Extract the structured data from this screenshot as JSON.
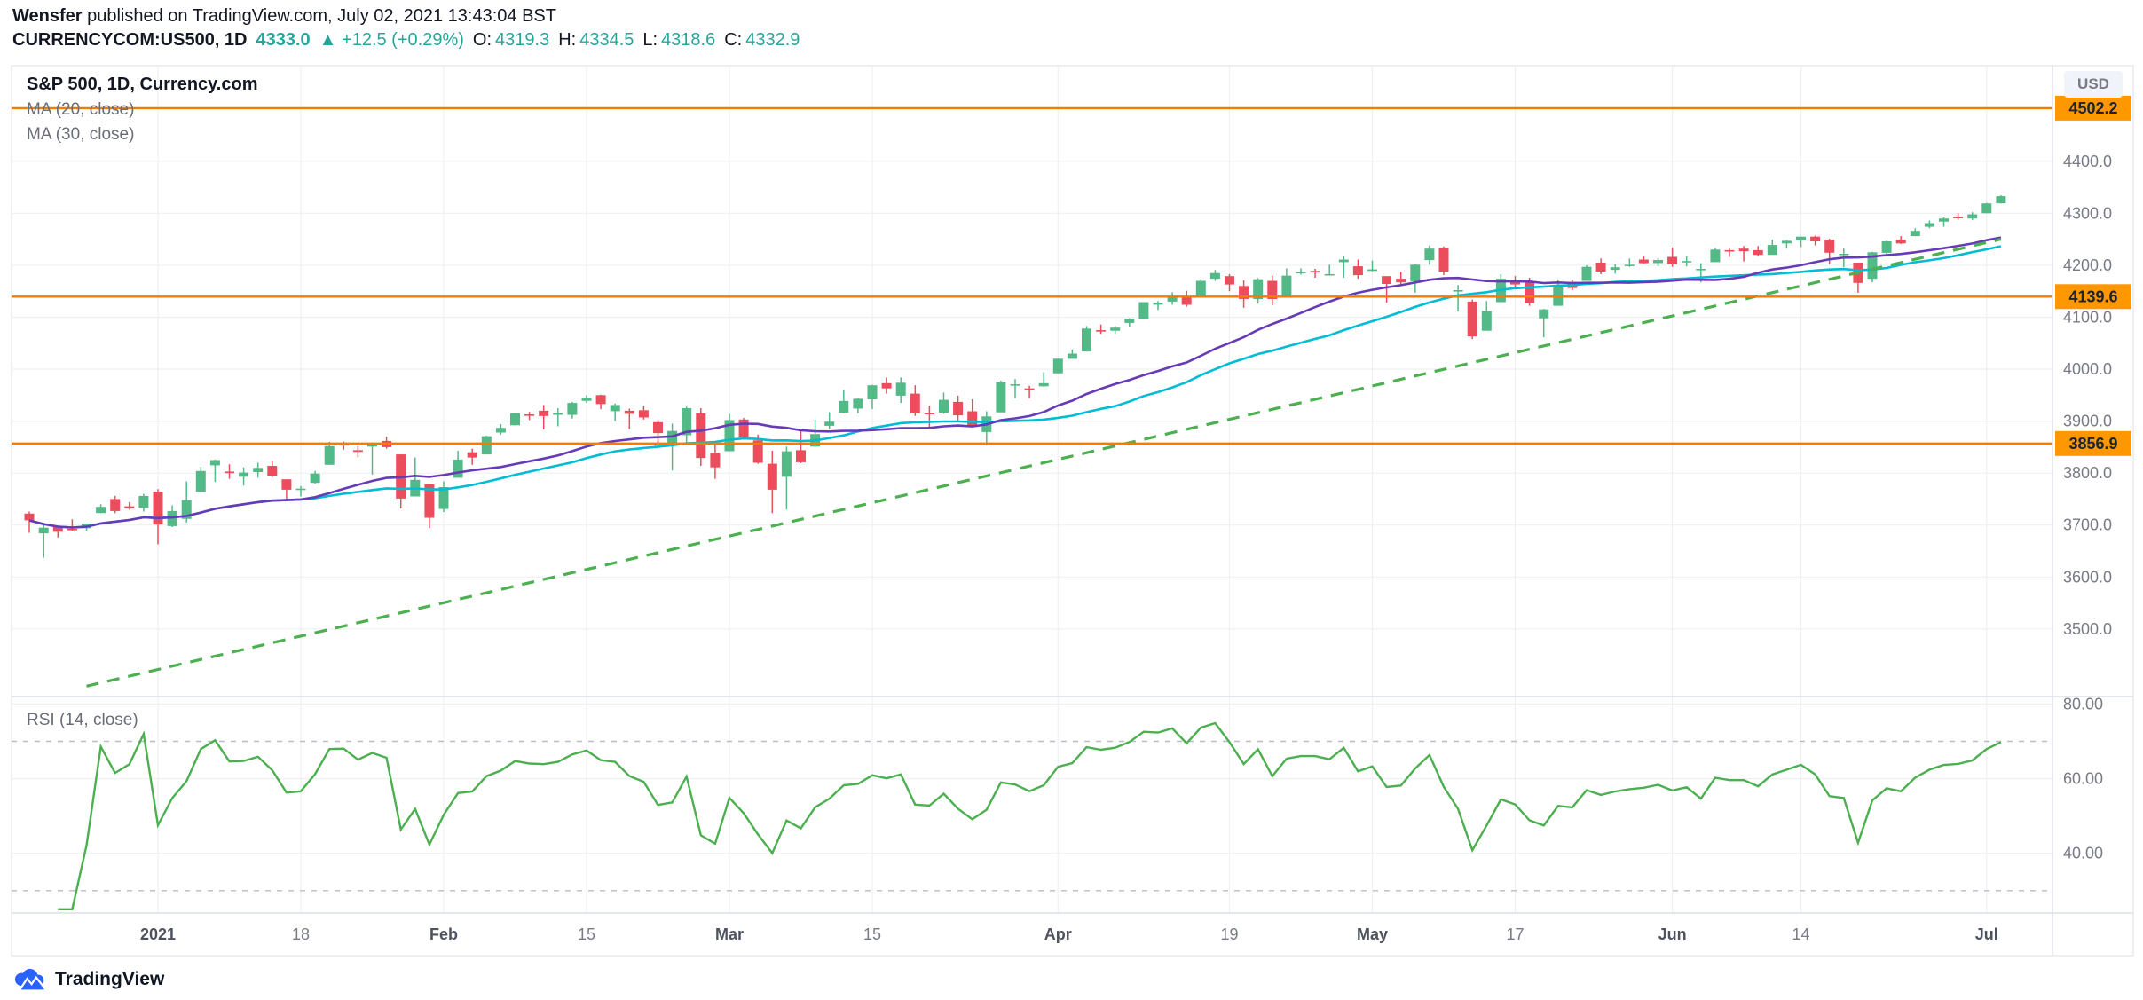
{
  "header": {
    "author": "Wensfer",
    "published": " published on TradingView.com, July 02, 2021 13:43:04 BST",
    "symbol": "CURRENCYCOM:US500, 1D",
    "price": "4333.0",
    "change": "▲ +12.5 (+0.29%)",
    "o_label": "O:",
    "o_value": "4319.3",
    "h_label": "H:",
    "h_value": "4334.5",
    "l_label": "L:",
    "l_value": "4318.6",
    "c_label": "C:",
    "c_value": "4332.9"
  },
  "legend": {
    "title": "S&P 500, 1D, Currency.com",
    "ma20": "MA (20, close)",
    "ma30": "MA (30, close)",
    "rsi": "RSI (14, close)"
  },
  "axis": {
    "currency": "USD"
  },
  "footer": {
    "brand": "TradingView"
  },
  "chart_data": {
    "type": "candlestick",
    "title": "S&P 500, 1D, Currency.com",
    "symbol": "CURRENCYCOM:US500",
    "interval": "1D",
    "colors": {
      "up": "#53b987",
      "down": "#eb4d5c"
    },
    "overlays": {
      "ma20_color": "#673ab7",
      "ma30_color": "#00bcd4"
    },
    "rsi_color": "#4caf50",
    "price_axis": {
      "range": [
        3370,
        4584
      ],
      "ticks": [
        4400,
        4300,
        4200,
        4100,
        4000,
        3900,
        3800,
        3700,
        3600,
        3500
      ]
    },
    "rsi_axis": {
      "range": [
        24,
        82
      ],
      "ticks": [
        80,
        60,
        40
      ],
      "bands": [
        70,
        30
      ]
    },
    "horizontal_lines": [
      {
        "price": 4502.2,
        "label": "4502.2",
        "color": "#f57c00"
      },
      {
        "price": 4139.6,
        "label": "4139.6",
        "color": "#f57c00"
      },
      {
        "price": 3856.9,
        "label": "3856.9",
        "color": "#f57c00"
      }
    ],
    "trendline": {
      "from_index": 4,
      "from_price": 3390,
      "to_index": 138,
      "to_price": 4250,
      "color": "#4caf50",
      "style": "dashed"
    },
    "time_ticks": [
      {
        "label": "2021",
        "i": 9,
        "major": true
      },
      {
        "label": "18",
        "i": 19,
        "major": false
      },
      {
        "label": "Feb",
        "i": 29,
        "major": true
      },
      {
        "label": "15",
        "i": 39,
        "major": false
      },
      {
        "label": "Mar",
        "i": 49,
        "major": true
      },
      {
        "label": "15",
        "i": 59,
        "major": false
      },
      {
        "label": "Apr",
        "i": 72,
        "major": true
      },
      {
        "label": "19",
        "i": 84,
        "major": false
      },
      {
        "label": "May",
        "i": 94,
        "major": true
      },
      {
        "label": "17",
        "i": 104,
        "major": false
      },
      {
        "label": "Jun",
        "i": 115,
        "major": true
      },
      {
        "label": "14",
        "i": 124,
        "major": false
      },
      {
        "label": "Jul",
        "i": 137,
        "major": true
      }
    ],
    "candles": [
      [
        "2020-12-18",
        3722,
        3726,
        3685,
        3709
      ],
      [
        "2020-12-21",
        3684,
        3703,
        3637,
        3695
      ],
      [
        "2020-12-22",
        3698,
        3698,
        3676,
        3687
      ],
      [
        "2020-12-23",
        3693,
        3711,
        3689,
        3690
      ],
      [
        "2020-12-24",
        3694,
        3703,
        3689,
        3703
      ],
      [
        "2020-12-28",
        3723,
        3740,
        3723,
        3735
      ],
      [
        "2020-12-29",
        3750,
        3756,
        3723,
        3727
      ],
      [
        "2020-12-30",
        3736,
        3744,
        3730,
        3732
      ],
      [
        "2020-12-31",
        3733,
        3760,
        3726,
        3756
      ],
      [
        "2021-01-04",
        3764,
        3769,
        3663,
        3701
      ],
      [
        "2021-01-05",
        3698,
        3738,
        3696,
        3727
      ],
      [
        "2021-01-06",
        3712,
        3784,
        3705,
        3748
      ],
      [
        "2021-01-07",
        3764,
        3812,
        3764,
        3804
      ],
      [
        "2021-01-08",
        3815,
        3826,
        3783,
        3825
      ],
      [
        "2021-01-11",
        3803,
        3817,
        3789,
        3800
      ],
      [
        "2021-01-12",
        3793,
        3811,
        3776,
        3801
      ],
      [
        "2021-01-13",
        3802,
        3820,
        3791,
        3810
      ],
      [
        "2021-01-14",
        3814,
        3823,
        3792,
        3795
      ],
      [
        "2021-01-15",
        3788,
        3788,
        3749,
        3768
      ],
      [
        "2021-01-18",
        3768,
        3775,
        3755,
        3770
      ],
      [
        "2021-01-19",
        3781,
        3804,
        3780,
        3799
      ],
      [
        "2021-01-20",
        3816,
        3860,
        3816,
        3852
      ],
      [
        "2021-01-21",
        3857,
        3861,
        3845,
        3853
      ],
      [
        "2021-01-22",
        3844,
        3852,
        3830,
        3841
      ],
      [
        "2021-01-25",
        3851,
        3859,
        3797,
        3855
      ],
      [
        "2021-01-26",
        3862,
        3870,
        3847,
        3850
      ],
      [
        "2021-01-27",
        3836,
        3836,
        3732,
        3751
      ],
      [
        "2021-01-28",
        3755,
        3830,
        3755,
        3787
      ],
      [
        "2021-01-29",
        3778,
        3778,
        3694,
        3714
      ],
      [
        "2021-02-01",
        3731,
        3784,
        3725,
        3773
      ],
      [
        "2021-02-02",
        3791,
        3843,
        3791,
        3826
      ],
      [
        "2021-02-03",
        3840,
        3847,
        3816,
        3830
      ],
      [
        "2021-02-04",
        3836,
        3872,
        3836,
        3871
      ],
      [
        "2021-02-05",
        3878,
        3894,
        3874,
        3887
      ],
      [
        "2021-02-08",
        3892,
        3915,
        3892,
        3915
      ],
      [
        "2021-02-09",
        3913,
        3918,
        3902,
        3911
      ],
      [
        "2021-02-10",
        3920,
        3931,
        3884,
        3910
      ],
      [
        "2021-02-11",
        3912,
        3925,
        3890,
        3916
      ],
      [
        "2021-02-12",
        3912,
        3937,
        3905,
        3935
      ],
      [
        "2021-02-15",
        3939,
        3950,
        3935,
        3945
      ],
      [
        "2021-02-16",
        3950,
        3951,
        3923,
        3933
      ],
      [
        "2021-02-17",
        3919,
        3934,
        3900,
        3931
      ],
      [
        "2021-02-18",
        3920,
        3924,
        3885,
        3914
      ],
      [
        "2021-02-19",
        3921,
        3930,
        3903,
        3907
      ],
      [
        "2021-02-22",
        3898,
        3902,
        3853,
        3877
      ],
      [
        "2021-02-23",
        3857,
        3895,
        3805,
        3881
      ],
      [
        "2021-02-24",
        3873,
        3928,
        3859,
        3925
      ],
      [
        "2021-02-25",
        3915,
        3925,
        3814,
        3829
      ],
      [
        "2021-02-26",
        3839,
        3861,
        3789,
        3811
      ],
      [
        "2021-03-01",
        3842,
        3914,
        3842,
        3902
      ],
      [
        "2021-03-02",
        3903,
        3906,
        3868,
        3870
      ],
      [
        "2021-03-03",
        3863,
        3874,
        3818,
        3820
      ],
      [
        "2021-03-04",
        3818,
        3843,
        3723,
        3768
      ],
      [
        "2021-03-05",
        3793,
        3851,
        3730,
        3842
      ],
      [
        "2021-03-08",
        3844,
        3881,
        3819,
        3821
      ],
      [
        "2021-03-09",
        3851,
        3903,
        3851,
        3875
      ],
      [
        "2021-03-10",
        3891,
        3917,
        3885,
        3899
      ],
      [
        "2021-03-11",
        3916,
        3960,
        3915,
        3939
      ],
      [
        "2021-03-12",
        3924,
        3944,
        3915,
        3943
      ],
      [
        "2021-03-15",
        3942,
        3970,
        3923,
        3969
      ],
      [
        "2021-03-16",
        3973,
        3984,
        3953,
        3963
      ],
      [
        "2021-03-17",
        3949,
        3984,
        3935,
        3974
      ],
      [
        "2021-03-18",
        3953,
        3969,
        3910,
        3915
      ],
      [
        "2021-03-19",
        3916,
        3930,
        3887,
        3913
      ],
      [
        "2021-03-22",
        3916,
        3955,
        3914,
        3941
      ],
      [
        "2021-03-23",
        3937,
        3949,
        3901,
        3911
      ],
      [
        "2021-03-24",
        3919,
        3942,
        3889,
        3889
      ],
      [
        "2021-03-25",
        3879,
        3919,
        3854,
        3909
      ],
      [
        "2021-03-26",
        3917,
        3978,
        3917,
        3975
      ],
      [
        "2021-03-29",
        3969,
        3981,
        3944,
        3971
      ],
      [
        "2021-03-30",
        3963,
        3968,
        3944,
        3959
      ],
      [
        "2021-03-31",
        3967,
        3994,
        3966,
        3973
      ],
      [
        "2021-04-01",
        3992,
        4020,
        3992,
        4020
      ],
      [
        "2021-04-02",
        4020,
        4038,
        4020,
        4030
      ],
      [
        "2021-04-05",
        4034,
        4083,
        4034,
        4078
      ],
      [
        "2021-04-06",
        4075,
        4086,
        4068,
        4074
      ],
      [
        "2021-04-07",
        4074,
        4083,
        4068,
        4080
      ],
      [
        "2021-04-08",
        4089,
        4098,
        4082,
        4097
      ],
      [
        "2021-04-09",
        4096,
        4129,
        4096,
        4129
      ],
      [
        "2021-04-12",
        4124,
        4131,
        4114,
        4128
      ],
      [
        "2021-04-13",
        4130,
        4148,
        4124,
        4141
      ],
      [
        "2021-04-14",
        4141,
        4151,
        4120,
        4124
      ],
      [
        "2021-04-15",
        4139,
        4173,
        4139,
        4170
      ],
      [
        "2021-04-16",
        4174,
        4191,
        4170,
        4185
      ],
      [
        "2021-04-19",
        4179,
        4183,
        4150,
        4163
      ],
      [
        "2021-04-20",
        4160,
        4171,
        4118,
        4135
      ],
      [
        "2021-04-21",
        4135,
        4175,
        4126,
        4173
      ],
      [
        "2021-04-22",
        4170,
        4180,
        4123,
        4135
      ],
      [
        "2021-04-23",
        4139,
        4194,
        4139,
        4180
      ],
      [
        "2021-04-26",
        4185,
        4194,
        4182,
        4187
      ],
      [
        "2021-04-27",
        4189,
        4193,
        4176,
        4187
      ],
      [
        "2021-04-28",
        4183,
        4201,
        4181,
        4183
      ],
      [
        "2021-04-29",
        4206,
        4218,
        4176,
        4211
      ],
      [
        "2021-04-30",
        4198,
        4211,
        4174,
        4181
      ],
      [
        "2021-05-03",
        4191,
        4209,
        4188,
        4192
      ],
      [
        "2021-05-04",
        4179,
        4179,
        4128,
        4164
      ],
      [
        "2021-05-05",
        4174,
        4187,
        4160,
        4167
      ],
      [
        "2021-05-06",
        4169,
        4202,
        4147,
        4201
      ],
      [
        "2021-05-07",
        4210,
        4238,
        4201,
        4232
      ],
      [
        "2021-05-10",
        4233,
        4236,
        4181,
        4188
      ],
      [
        "2021-05-11",
        4150,
        4162,
        4111,
        4152
      ],
      [
        "2021-05-12",
        4130,
        4134,
        4058,
        4063
      ],
      [
        "2021-05-13",
        4074,
        4131,
        4074,
        4112
      ],
      [
        "2021-05-14",
        4129,
        4183,
        4129,
        4174
      ],
      [
        "2021-05-17",
        4169,
        4179,
        4156,
        4163
      ],
      [
        "2021-05-18",
        4168,
        4176,
        4122,
        4127
      ],
      [
        "2021-05-19",
        4098,
        4116,
        4061,
        4115
      ],
      [
        "2021-05-20",
        4122,
        4172,
        4122,
        4159
      ],
      [
        "2021-05-21",
        4168,
        4172,
        4152,
        4156
      ],
      [
        "2021-05-24",
        4170,
        4200,
        4170,
        4197
      ],
      [
        "2021-05-25",
        4205,
        4213,
        4183,
        4188
      ],
      [
        "2021-05-26",
        4191,
        4202,
        4184,
        4196
      ],
      [
        "2021-05-27",
        4201,
        4213,
        4197,
        4201
      ],
      [
        "2021-05-28",
        4211,
        4218,
        4203,
        4204
      ],
      [
        "2021-05-31",
        4204,
        4214,
        4198,
        4210
      ],
      [
        "2021-06-01",
        4216,
        4234,
        4197,
        4202
      ],
      [
        "2021-06-02",
        4207,
        4217,
        4198,
        4208
      ],
      [
        "2021-06-03",
        4191,
        4204,
        4167,
        4193
      ],
      [
        "2021-06-04",
        4206,
        4233,
        4206,
        4230
      ],
      [
        "2021-06-07",
        4229,
        4232,
        4216,
        4227
      ],
      [
        "2021-06-08",
        4232,
        4237,
        4207,
        4227
      ],
      [
        "2021-06-09",
        4229,
        4237,
        4218,
        4220
      ],
      [
        "2021-06-10",
        4220,
        4249,
        4220,
        4239
      ],
      [
        "2021-06-11",
        4242,
        4248,
        4232,
        4247
      ],
      [
        "2021-06-14",
        4248,
        4255,
        4235,
        4255
      ],
      [
        "2021-06-15",
        4255,
        4257,
        4238,
        4246
      ],
      [
        "2021-06-16",
        4249,
        4251,
        4202,
        4224
      ],
      [
        "2021-06-17",
        4221,
        4232,
        4196,
        4222
      ],
      [
        "2021-06-18",
        4205,
        4205,
        4147,
        4166
      ],
      [
        "2021-06-21",
        4174,
        4226,
        4167,
        4225
      ],
      [
        "2021-06-22",
        4224,
        4247,
        4217,
        4246
      ],
      [
        "2021-06-23",
        4249,
        4256,
        4241,
        4242
      ],
      [
        "2021-06-24",
        4256,
        4271,
        4256,
        4266
      ],
      [
        "2021-06-25",
        4274,
        4286,
        4271,
        4281
      ],
      [
        "2021-06-28",
        4284,
        4292,
        4274,
        4290
      ],
      [
        "2021-06-29",
        4293,
        4300,
        4287,
        4292
      ],
      [
        "2021-06-30",
        4290,
        4302,
        4287,
        4298
      ],
      [
        "2021-07-01",
        4300,
        4320,
        4300,
        4319
      ],
      [
        "2021-07-02",
        4319.3,
        4334.5,
        4318.6,
        4332.9
      ]
    ]
  }
}
